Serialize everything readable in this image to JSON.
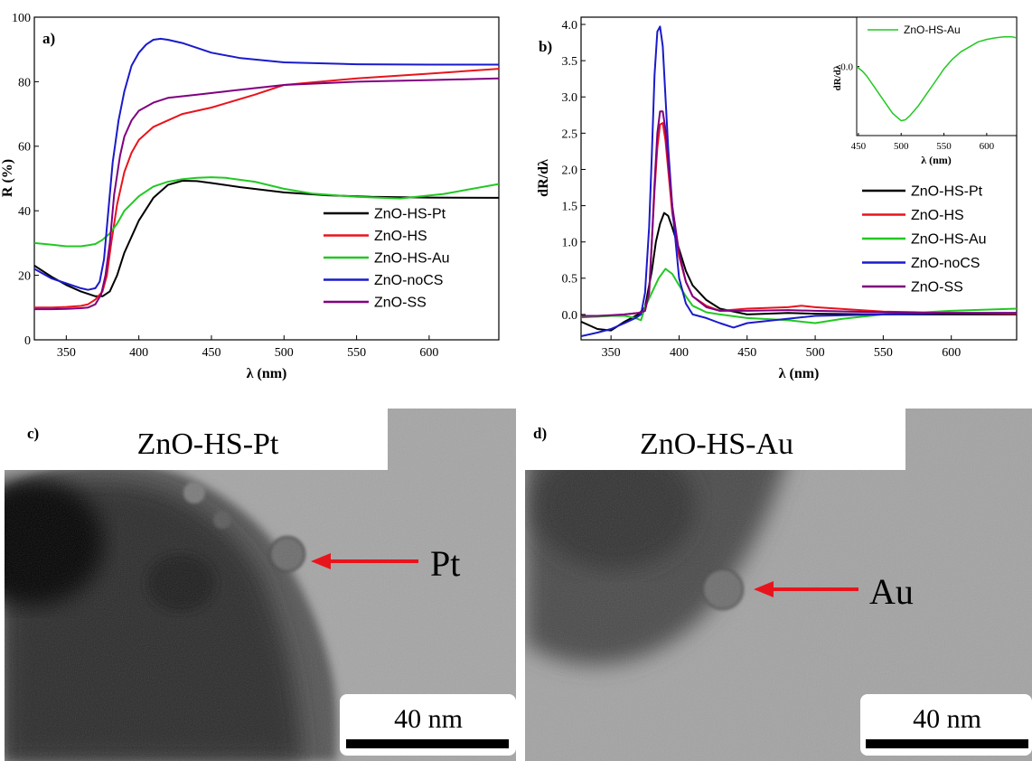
{
  "chart_data": [
    {
      "panel": "a)",
      "type": "line",
      "xlabel_symbol": "λ",
      "xlabel_unit": "(nm)",
      "ylabel": "R (%)",
      "xlim": [
        328,
        648
      ],
      "ylim": [
        0,
        100
      ],
      "xticks": [
        350,
        400,
        450,
        500,
        550,
        600
      ],
      "yticks": [
        0,
        20,
        40,
        60,
        80,
        100
      ],
      "legend_position": "bottom-right",
      "series": [
        {
          "name": "ZnO-HS-Pt",
          "color": "#000000",
          "x": [
            328,
            340,
            350,
            360,
            370,
            375,
            380,
            385,
            390,
            400,
            410,
            420,
            430,
            440,
            450,
            470,
            500,
            530,
            560,
            600,
            648
          ],
          "y": [
            23,
            19.5,
            17,
            15,
            13.5,
            13.5,
            15,
            20,
            27,
            37,
            44,
            48,
            49.3,
            49.2,
            48.6,
            47.3,
            45.7,
            44.8,
            44.3,
            44.1,
            44.0
          ]
        },
        {
          "name": "ZnO-HS",
          "color": "#e8141c",
          "x": [
            328,
            340,
            350,
            360,
            365,
            370,
            375,
            378,
            381,
            385,
            390,
            395,
            400,
            410,
            420,
            430,
            450,
            480,
            500,
            550,
            600,
            648
          ],
          "y": [
            10,
            10,
            10.2,
            10.5,
            11,
            12.5,
            15,
            20,
            30,
            42,
            52,
            58,
            62,
            66,
            68,
            70,
            72,
            76,
            79,
            81,
            82.5,
            84
          ]
        },
        {
          "name": "ZnO-HS-Au",
          "color": "#22c822",
          "x": [
            328,
            340,
            350,
            360,
            365,
            370,
            375,
            380,
            385,
            390,
            400,
            410,
            420,
            430,
            440,
            450,
            460,
            480,
            500,
            520,
            550,
            580,
            610,
            648
          ],
          "y": [
            30,
            29.5,
            29,
            29,
            29.3,
            29.7,
            31,
            33,
            36,
            40,
            44.5,
            47.5,
            49,
            49.8,
            50.2,
            50.4,
            50.2,
            49,
            46.8,
            45.3,
            44.3,
            43.8,
            45.2,
            48.3
          ]
        },
        {
          "name": "ZnO-noCS",
          "color": "#1a1acc",
          "x": [
            328,
            340,
            350,
            360,
            365,
            370,
            373,
            376,
            379,
            382,
            386,
            390,
            395,
            400,
            405,
            410,
            415,
            420,
            430,
            440,
            450,
            470,
            500,
            550,
            600,
            648
          ],
          "y": [
            22,
            19,
            17.5,
            16,
            15.5,
            16,
            18,
            25,
            40,
            55,
            68,
            77,
            85,
            89,
            91.5,
            93,
            93.3,
            93,
            92,
            90.5,
            89,
            87.3,
            86,
            85.4,
            85.3,
            85.3
          ]
        },
        {
          "name": "ZnO-SS",
          "color": "#800080",
          "x": [
            328,
            340,
            350,
            360,
            365,
            370,
            374,
            377,
            380,
            383,
            387,
            390,
            395,
            400,
            410,
            420,
            440,
            460,
            480,
            500,
            550,
            600,
            648
          ],
          "y": [
            9.5,
            9.5,
            9.6,
            9.8,
            10,
            11,
            14,
            20,
            30,
            45,
            57,
            63,
            68,
            71,
            73.5,
            75,
            76,
            77,
            78,
            79,
            80,
            80.5,
            81
          ]
        }
      ]
    },
    {
      "panel": "b)",
      "type": "line",
      "xlabel_symbol": "λ",
      "xlabel_unit": "(nm)",
      "ylabel": "dR/dλ",
      "xlim": [
        328,
        648
      ],
      "ylim": [
        -0.35,
        4.1
      ],
      "xticks": [
        350,
        400,
        450,
        500,
        550,
        600
      ],
      "yticks": [
        0.0,
        0.5,
        1.0,
        1.5,
        2.0,
        2.5,
        3.0,
        3.5,
        4.0
      ],
      "legend_position": "right",
      "series": [
        {
          "name": "ZnO-HS-Pt",
          "color": "#000000",
          "x": [
            328,
            340,
            350,
            360,
            370,
            375,
            378,
            380,
            383,
            386,
            389,
            392,
            395,
            400,
            405,
            410,
            420,
            430,
            450,
            480,
            500,
            550,
            600,
            648
          ],
          "y": [
            -0.1,
            -0.2,
            -0.22,
            -0.1,
            0.0,
            0.1,
            0.4,
            0.6,
            1.0,
            1.25,
            1.4,
            1.36,
            1.2,
            0.9,
            0.6,
            0.4,
            0.2,
            0.08,
            0.0,
            0.02,
            0.01,
            0.0,
            0.0,
            0.0
          ]
        },
        {
          "name": "ZnO-HS",
          "color": "#e8141c",
          "x": [
            328,
            340,
            350,
            360,
            370,
            375,
            378,
            380,
            382,
            384,
            386,
            388,
            390,
            392,
            395,
            400,
            405,
            410,
            420,
            430,
            450,
            480,
            490,
            500,
            550,
            600,
            648
          ],
          "y": [
            -0.04,
            -0.03,
            -0.02,
            0.0,
            0.02,
            0.05,
            0.3,
            1.0,
            1.7,
            2.3,
            2.62,
            2.64,
            2.4,
            2.0,
            1.4,
            0.8,
            0.45,
            0.25,
            0.12,
            0.05,
            0.08,
            0.1,
            0.12,
            0.1,
            0.04,
            0.02,
            0.01
          ]
        },
        {
          "name": "ZnO-HS-Au",
          "color": "#22c822",
          "x": [
            328,
            340,
            350,
            360,
            368,
            372,
            375,
            380,
            385,
            390,
            395,
            400,
            405,
            410,
            420,
            430,
            450,
            480,
            500,
            520,
            550,
            600,
            648
          ],
          "y": [
            -0.03,
            -0.03,
            -0.02,
            -0.02,
            -0.05,
            -0.08,
            0.1,
            0.3,
            0.5,
            0.63,
            0.56,
            0.4,
            0.25,
            0.12,
            0.03,
            0.0,
            -0.05,
            -0.08,
            -0.12,
            -0.06,
            0.0,
            0.05,
            0.08
          ]
        },
        {
          "name": "ZnO-noCS",
          "color": "#1a1acc",
          "x": [
            328,
            340,
            350,
            360,
            368,
            372,
            375,
            378,
            380,
            382,
            384,
            386,
            388,
            390,
            392,
            395,
            398,
            400,
            405,
            410,
            420,
            430,
            440,
            450,
            470,
            500,
            550,
            600,
            648
          ],
          "y": [
            -0.3,
            -0.25,
            -0.2,
            -0.12,
            -0.05,
            0.0,
            0.3,
            1.2,
            2.2,
            3.3,
            3.9,
            3.97,
            3.7,
            3.0,
            2.3,
            1.5,
            0.9,
            0.5,
            0.15,
            0.0,
            -0.05,
            -0.12,
            -0.18,
            -0.12,
            -0.08,
            -0.02,
            0.0,
            0.02,
            0.02
          ]
        },
        {
          "name": "ZnO-SS",
          "color": "#800080",
          "x": [
            328,
            340,
            350,
            360,
            370,
            375,
            378,
            380,
            382,
            384,
            386,
            388,
            390,
            392,
            395,
            400,
            405,
            410,
            420,
            430,
            450,
            480,
            500,
            550,
            600,
            648
          ],
          "y": [
            -0.02,
            -0.02,
            -0.01,
            0.0,
            0.02,
            0.05,
            0.3,
            1.0,
            1.8,
            2.5,
            2.8,
            2.8,
            2.55,
            2.1,
            1.5,
            0.85,
            0.45,
            0.25,
            0.1,
            0.05,
            0.05,
            0.06,
            0.05,
            0.03,
            0.02,
            0.02
          ]
        }
      ],
      "inset": {
        "ylabel": "dR/dλ",
        "xlabel_symbol": "λ",
        "xlabel_unit": "(nm)",
        "xlim": [
          448,
          635
        ],
        "ylim": [
          -0.14,
          0.1
        ],
        "xticks": [
          450,
          500,
          550,
          600
        ],
        "yticks": [
          "0.0"
        ],
        "legend_position": "top",
        "series": [
          {
            "name": "ZnO-HS-Au",
            "color": "#22c822",
            "x": [
              448,
              455,
              460,
              470,
              480,
              490,
              500,
              505,
              510,
              520,
              530,
              540,
              550,
              560,
              570,
              580,
              590,
              600,
              610,
              620,
              630,
              635
            ],
            "y": [
              0.0,
              -0.01,
              -0.02,
              -0.045,
              -0.07,
              -0.095,
              -0.11,
              -0.108,
              -0.1,
              -0.08,
              -0.055,
              -0.03,
              -0.005,
              0.015,
              0.03,
              0.04,
              0.05,
              0.055,
              0.058,
              0.06,
              0.06,
              0.058
            ]
          }
        ]
      }
    }
  ],
  "tem_panels": [
    {
      "label": "c)",
      "title": "ZnO-HS-Pt",
      "particle_label": "Pt",
      "arrow_color": "#e8141c",
      "scale_text": "40 nm"
    },
    {
      "label": "d)",
      "title": "ZnO-HS-Au",
      "particle_label": "Au",
      "arrow_color": "#e8141c",
      "scale_text": "40 nm"
    }
  ]
}
